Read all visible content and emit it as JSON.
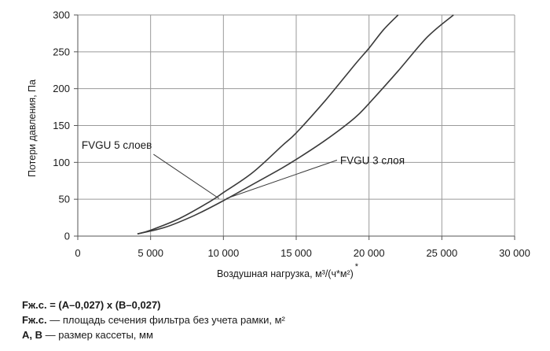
{
  "chart_data": {
    "type": "line",
    "title": "",
    "xlabel": "Воздушная нагрузка, м³/(ч*м²)",
    "xlabel_mark": "*",
    "ylabel": "Потери давления, Па",
    "xlim": [
      0,
      30000
    ],
    "ylim": [
      0,
      300
    ],
    "x_ticks": [
      0,
      5000,
      10000,
      15000,
      20000,
      25000,
      30000
    ],
    "x_tick_labels": [
      "0",
      "5 000",
      "10 000",
      "15 000",
      "20 000",
      "25 000",
      "30 000"
    ],
    "y_ticks": [
      0,
      50,
      100,
      150,
      200,
      250,
      300
    ],
    "y_tick_labels": [
      "0",
      "50",
      "100",
      "150",
      "200",
      "250",
      "300"
    ],
    "grid": true,
    "series": [
      {
        "name": "FVGU 5 слоев",
        "color": "#3a3a3a",
        "x": [
          4100,
          5000,
          7000,
          9000,
          10000,
          12000,
          14000,
          15000,
          17000,
          19000,
          20000,
          21000,
          22000
        ],
        "y": [
          3,
          8,
          24,
          46,
          59,
          86,
          122,
          140,
          184,
          232,
          255,
          280,
          300
        ]
      },
      {
        "name": "FVGU 3 слоя",
        "color": "#3a3a3a",
        "x": [
          4100,
          6000,
          8000,
          10000,
          12000,
          14000,
          15000,
          17000,
          19000,
          20000,
          22000,
          24000,
          25800
        ],
        "y": [
          3,
          12,
          28,
          48,
          70,
          92,
          104,
          130,
          160,
          180,
          224,
          270,
          300
        ]
      }
    ],
    "annotations": [
      {
        "text": "FVGU 5 слоев",
        "series": 0,
        "point": [
          9700,
          51
        ],
        "label_anchor": [
          5200,
          111
        ]
      },
      {
        "text": "FVGU 3 слоя",
        "series": 1,
        "point": [
          10200,
          51
        ],
        "label_anchor": [
          17800,
          103
        ]
      }
    ]
  },
  "notes": {
    "formula": "Fж.с. = (A–0,027) x (B–0,027)",
    "line2_term": "Fж.с.",
    "line2_text": " — площадь сечения фильтра без учета рамки, м²",
    "line3_term": "A, B",
    "line3_text": " — размер кассеты, мм"
  }
}
